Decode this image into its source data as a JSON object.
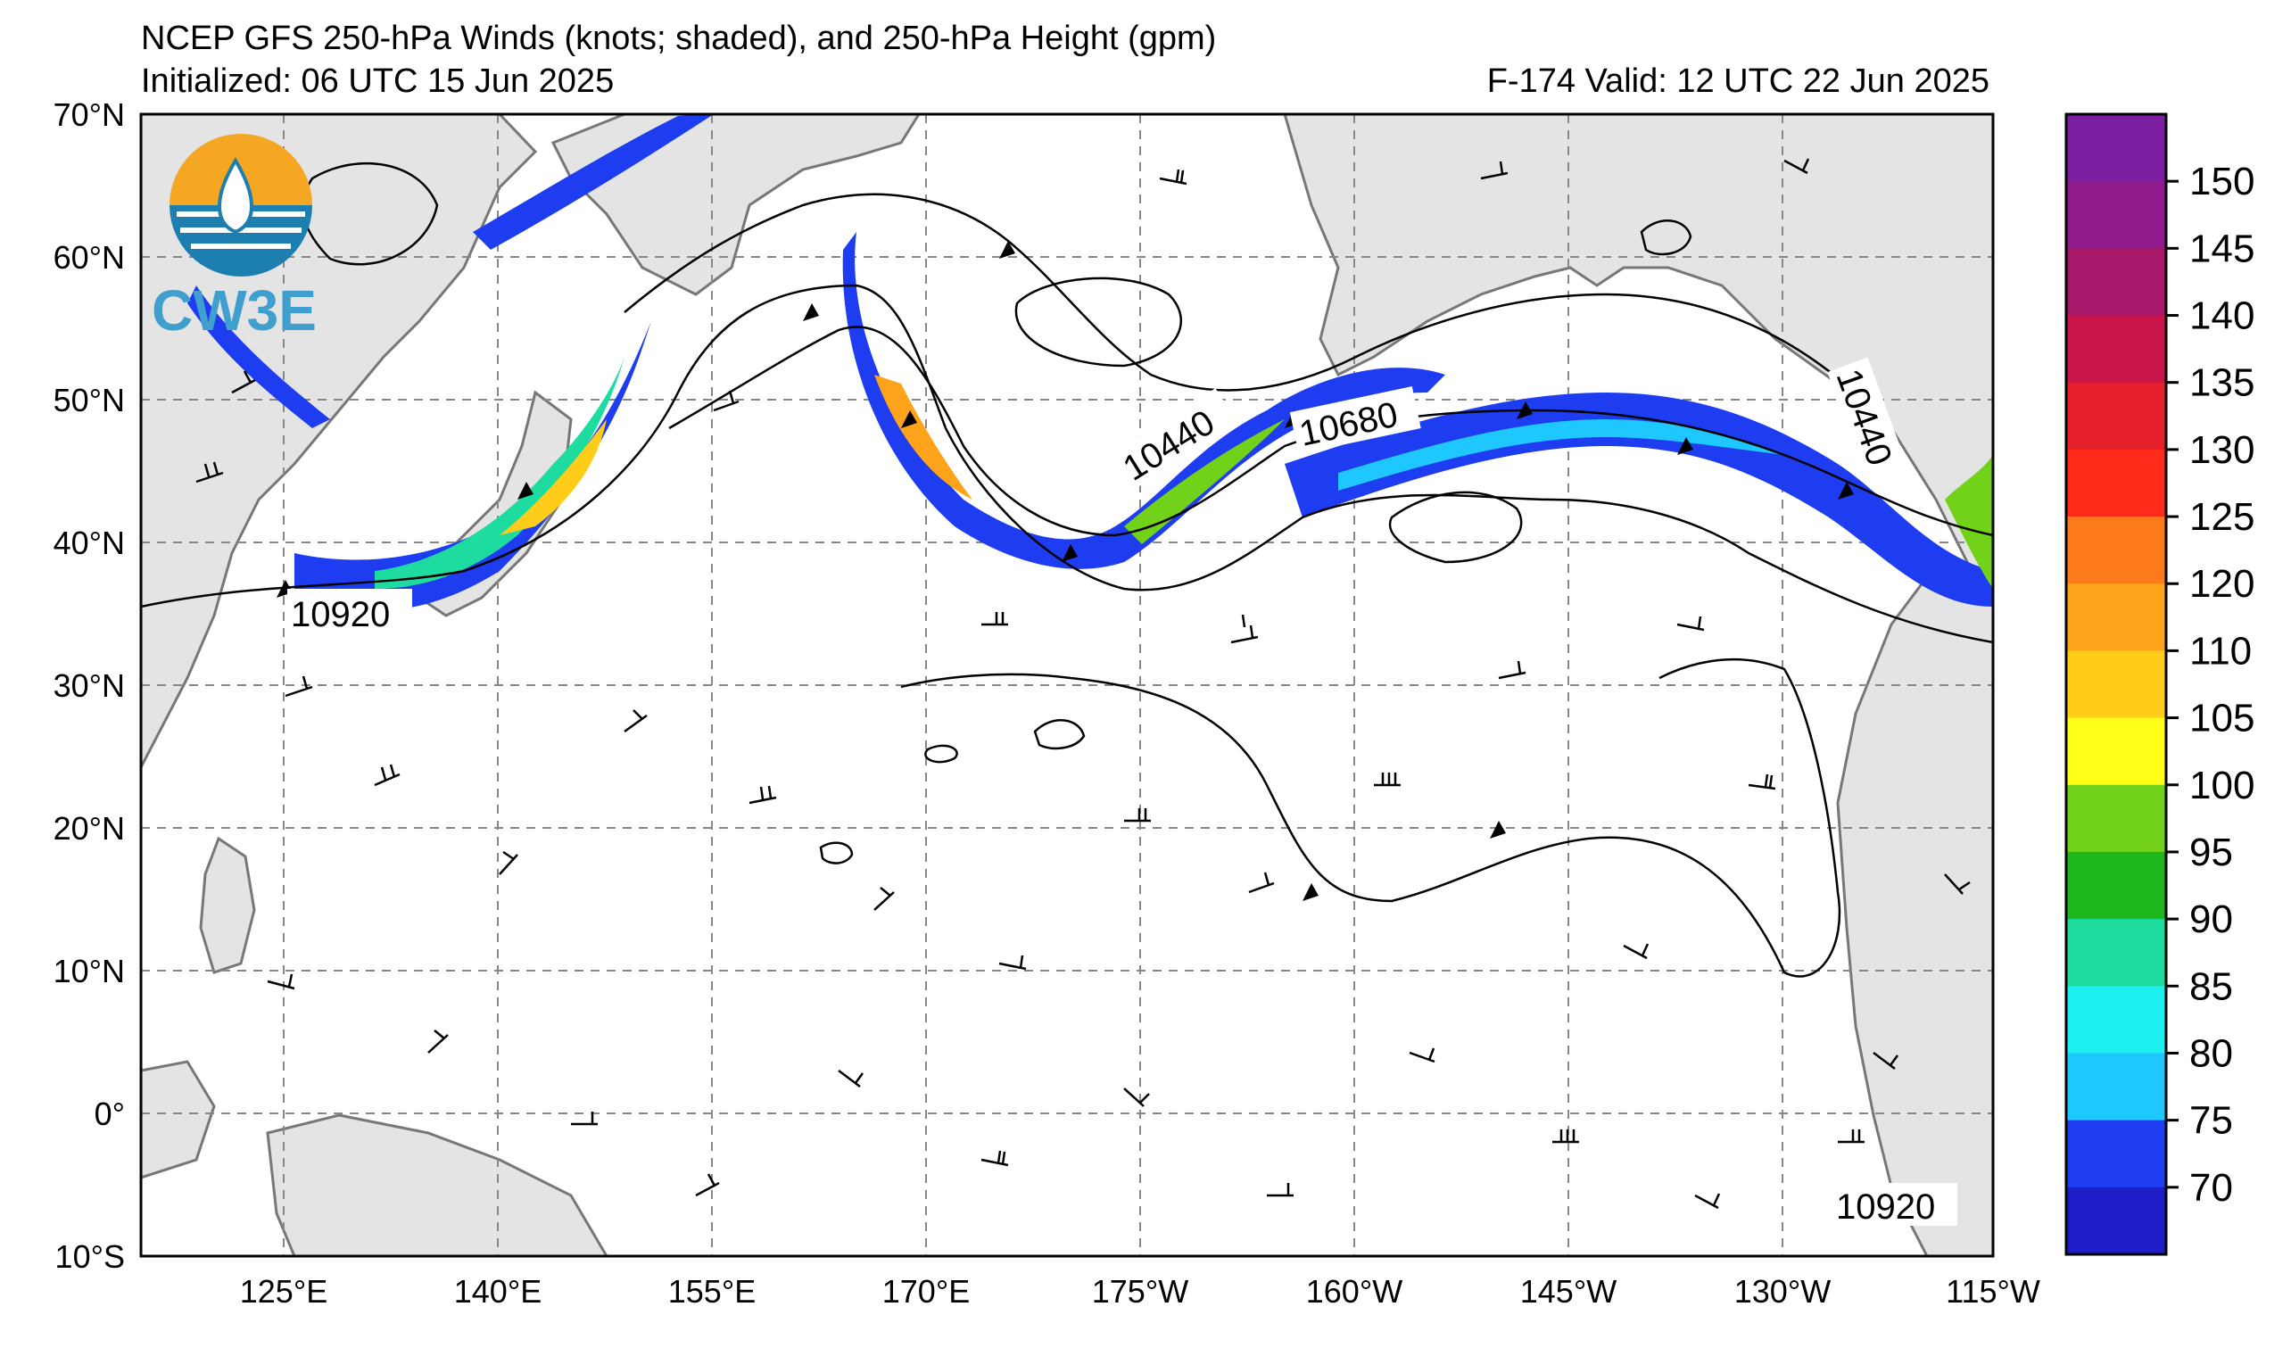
{
  "header": {
    "title": "NCEP GFS 250-hPa Winds (knots; shaded), and 250-hPa Height (gpm)",
    "initialized": "Initialized: 06 UTC 15 Jun 2025",
    "valid": "F-174  Valid: 12 UTC 22 Jun 2025"
  },
  "logo": {
    "text": "CW3E",
    "icon": "cw3e-logo-icon"
  },
  "map": {
    "lon_labels": [
      "125°E",
      "140°E",
      "155°E",
      "170°E",
      "175°W",
      "160°W",
      "145°W",
      "130°W",
      "115°W"
    ],
    "lat_labels": [
      "70°N",
      "60°N",
      "50°N",
      "40°N",
      "30°N",
      "20°N",
      "10°N",
      "0°",
      "10°S"
    ],
    "contour_labels": [
      "10920",
      "10440",
      "10680",
      "10440",
      "10920"
    ],
    "colors": {
      "land": "#e4e4e4",
      "coast": "#777777",
      "contour": "#000000",
      "grid": "#888888"
    }
  },
  "colorbar": {
    "ticks": [
      "150",
      "145",
      "140",
      "135",
      "130",
      "125",
      "120",
      "110",
      "105",
      "100",
      "95",
      "90",
      "85",
      "80",
      "75",
      "70"
    ],
    "colors": [
      "#7b1fa0",
      "#8e1a8c",
      "#a8186a",
      "#c8164a",
      "#e6202a",
      "#ff2a1a",
      "#ff7a1a",
      "#ffa41a",
      "#ffcc1a",
      "#ffff1a",
      "#72d21a",
      "#1eb81e",
      "#1edca0",
      "#1ef0f0",
      "#1ec8ff",
      "#1e3cf0",
      "#1e1ec8"
    ]
  }
}
